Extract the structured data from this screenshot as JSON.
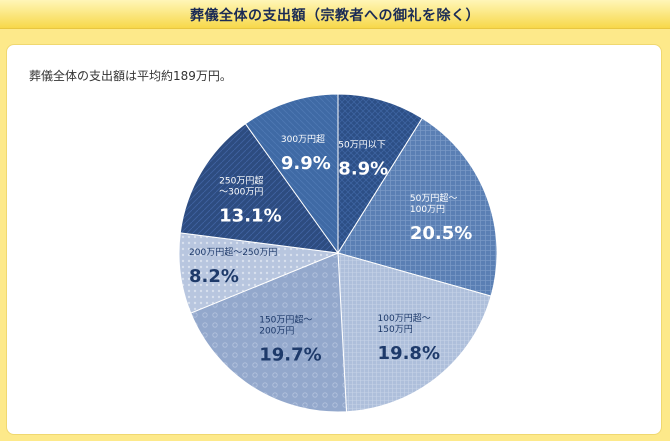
{
  "header": {
    "title": "葬儀全体の支出額（宗教者への御礼を除く）"
  },
  "summary": "葬儀全体の支出額は平均約189万円。",
  "colors": {
    "banner": "#f7d84a",
    "dark": "#2c4f86",
    "mid": "#4c74aa",
    "light": "#6d8fbe",
    "pale": "#aebfdb"
  },
  "chart_data": {
    "type": "pie",
    "title": "",
    "slices": [
      {
        "label": [
          "50万円以下"
        ],
        "value": 8.9,
        "value_label": "8.9%",
        "color": "#2c4f86",
        "text": "#ffffff"
      },
      {
        "label": [
          "50万円超～",
          "100万円"
        ],
        "value": 20.5,
        "value_label": "20.5%",
        "color": "#5a7fb4",
        "text": "#ffffff"
      },
      {
        "label": [
          "100万円超～",
          "150万円"
        ],
        "value": 19.8,
        "value_label": "19.8%",
        "color": "#aebfdb",
        "text": "#1e3a6a"
      },
      {
        "label": [
          "150万円超～",
          "200万円"
        ],
        "value": 19.7,
        "value_label": "19.7%",
        "color": "#93a8cc",
        "text": "#1e3a6a"
      },
      {
        "label": [
          "200万円超～250万円"
        ],
        "value": 8.2,
        "value_label": "8.2%",
        "color": "#b8c6df",
        "text": "#1e3a6a"
      },
      {
        "label": [
          "250万円超",
          "～300万円"
        ],
        "value": 13.1,
        "value_label": "13.1%",
        "color": "#2d4c80",
        "text": "#ffffff"
      },
      {
        "label": [
          "300万円超"
        ],
        "value": 9.9,
        "value_label": "9.9%",
        "color": "#3f6aa5",
        "text": "#ffffff"
      }
    ]
  }
}
